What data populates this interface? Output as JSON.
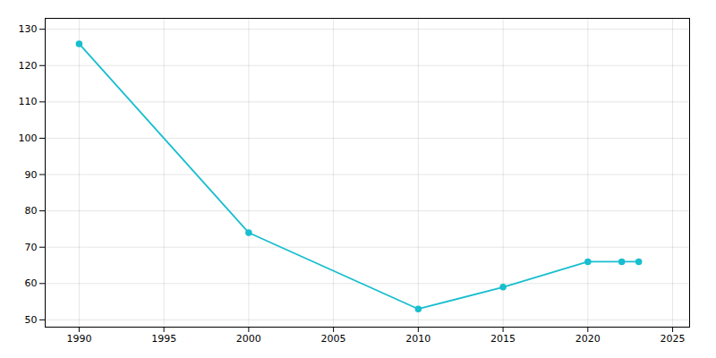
{
  "chart_data": {
    "type": "line",
    "x": [
      1990,
      2000,
      2010,
      2015,
      2020,
      2022,
      2023
    ],
    "values": [
      126,
      74,
      53,
      59,
      66,
      66,
      66
    ],
    "color": "#17becf",
    "marker": "circle",
    "xlim": [
      1988,
      2026
    ],
    "ylim": [
      48,
      133
    ],
    "xticks": [
      1990,
      1995,
      2000,
      2005,
      2010,
      2015,
      2020,
      2025
    ],
    "yticks": [
      50,
      60,
      70,
      80,
      90,
      100,
      110,
      120,
      130
    ],
    "grid": true
  }
}
